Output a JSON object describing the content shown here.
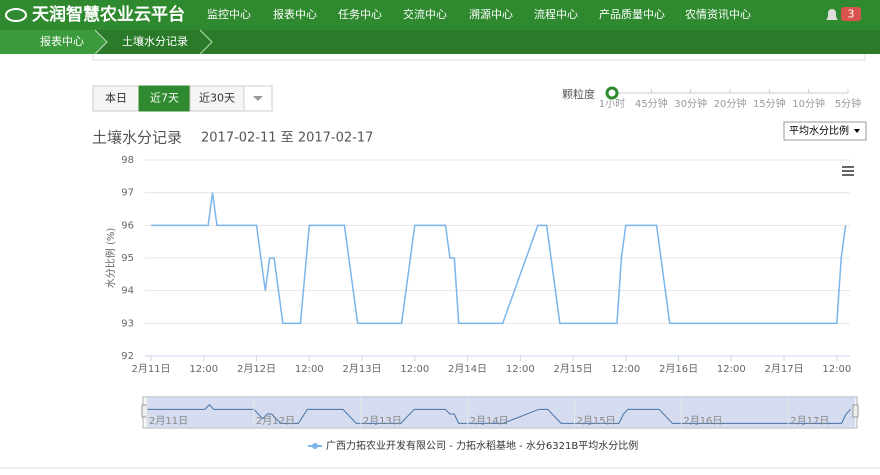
{
  "header": {
    "logo": "天润智慧农业云平台",
    "nav": [
      "监控中心",
      "报表中心",
      "任务中心",
      "交流中心",
      "溯源中心",
      "流程中心",
      "产品质量中心",
      "农情资讯中心"
    ],
    "badge": 3
  },
  "breadcrumb": [
    "报表中心",
    "土壤水分记录"
  ],
  "range_buttons": [
    "本日",
    "近7天",
    "近30天"
  ],
  "granularity": {
    "label": "颗粒度",
    "options": [
      "1小时",
      "45分钟",
      "30分钟",
      "20分钟",
      "15分钟",
      "10分钟",
      "5分钟"
    ]
  },
  "metric_select": "平均水分比例",
  "chart_data": {
    "type": "line",
    "title": "土壤水分记录",
    "subtitle": "2017-02-11 至 2017-02-17",
    "y_label": "水分比例 (%)",
    "x": [
      0,
      13,
      14,
      15,
      24,
      26,
      27,
      28,
      30,
      34,
      36,
      44,
      47,
      57,
      60,
      67,
      68,
      69,
      70,
      80,
      88,
      90,
      93,
      106,
      107,
      108,
      115,
      118,
      156,
      157,
      158
    ],
    "series": [
      {
        "name": "广西力拓农业开发有限公司 - 力拓水稻基地 - 水分6321B平均水分比例",
        "color": "#7cb5ec",
        "values": [
          96,
          96,
          97,
          96,
          96,
          94,
          95,
          95,
          93,
          93,
          96,
          96,
          93,
          93,
          96,
          96,
          95,
          95,
          93,
          93,
          96,
          96,
          93,
          93,
          95,
          96,
          96,
          93,
          93,
          95,
          96
        ]
      }
    ],
    "xlim": [
      0,
      159
    ],
    "xticks": [
      {
        "value": 0,
        "label": "2月11日"
      },
      {
        "value": 12,
        "label": "12:00"
      },
      {
        "value": 24,
        "label": "2月12日"
      },
      {
        "value": 36,
        "label": "12:00"
      },
      {
        "value": 48,
        "label": "2月13日"
      },
      {
        "value": 60,
        "label": "12:00"
      },
      {
        "value": 72,
        "label": "2月14日"
      },
      {
        "value": 84,
        "label": "12:00"
      },
      {
        "value": 96,
        "label": "2月15日"
      },
      {
        "value": 108,
        "label": "12:00"
      },
      {
        "value": 120,
        "label": "2月16日"
      },
      {
        "value": 132,
        "label": "12:00"
      },
      {
        "value": 144,
        "label": "2月17日"
      },
      {
        "value": 156,
        "label": "12:00"
      }
    ],
    "ylim": [
      92,
      98
    ],
    "yticks": [
      92,
      93,
      94,
      95,
      96,
      97,
      98
    ],
    "grid": true,
    "navigator_ticks": [
      {
        "value": 0,
        "label": "2月11日"
      },
      {
        "value": 24,
        "label": "2月12日"
      },
      {
        "value": 48,
        "label": "2月13日"
      },
      {
        "value": 72,
        "label": "2月14日"
      },
      {
        "value": 96,
        "label": "2月15日"
      },
      {
        "value": 120,
        "label": "2月16日"
      },
      {
        "value": 144,
        "label": "2月17日"
      }
    ]
  }
}
